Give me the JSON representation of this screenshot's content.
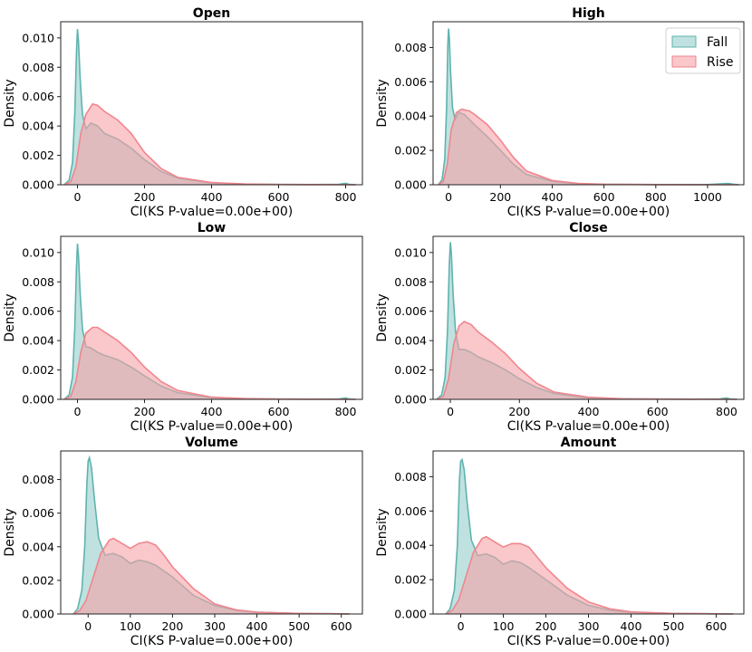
{
  "chart_data": [
    {
      "type": "area",
      "title": "Open",
      "xlabel": "CI(KS P-value=0.00e+00)",
      "ylabel": "Density",
      "xlim": [
        -50,
        850
      ],
      "ylim": [
        0,
        0.0111
      ],
      "xticks": [
        0,
        200,
        400,
        600,
        800
      ],
      "yticks": [
        0.0,
        0.002,
        0.004,
        0.006,
        0.008,
        0.01
      ],
      "ytick_labels": [
        "0.000",
        "0.002",
        "0.004",
        "0.006",
        "0.008",
        "0.010"
      ],
      "series": [
        {
          "name": "Fall",
          "x": [
            -40,
            -25,
            -15,
            -8,
            -3,
            0,
            3,
            8,
            15,
            25,
            40,
            60,
            80,
            120,
            160,
            200,
            250,
            300,
            400,
            500,
            600,
            700,
            780,
            800,
            810,
            830
          ],
          "y": [
            0,
            0.0003,
            0.0015,
            0.0048,
            0.009,
            0.0106,
            0.0098,
            0.0072,
            0.0048,
            0.0038,
            0.0042,
            0.004,
            0.0035,
            0.0031,
            0.0025,
            0.0017,
            0.0009,
            0.00045,
            0.00012,
            4e-05,
            2e-05,
            1e-05,
            3e-05,
            0.0001,
            3e-05,
            0
          ]
        },
        {
          "name": "Rise",
          "x": [
            -40,
            -20,
            -5,
            10,
            25,
            45,
            60,
            80,
            120,
            160,
            200,
            250,
            300,
            400,
            500,
            600,
            700,
            800,
            830
          ],
          "y": [
            0,
            0.0002,
            0.0012,
            0.0035,
            0.0048,
            0.0055,
            0.0054,
            0.005,
            0.0044,
            0.0035,
            0.0022,
            0.0011,
            0.0005,
            0.00015,
            5e-05,
            2e-05,
            1e-05,
            0,
            0
          ]
        }
      ]
    },
    {
      "type": "area",
      "title": "High",
      "xlabel": "CI(KS P-value=0.00e+00)",
      "ylabel": "Density",
      "xlim": [
        -60,
        1140
      ],
      "ylim": [
        0,
        0.0095
      ],
      "xticks": [
        0,
        200,
        400,
        600,
        800,
        1000
      ],
      "yticks": [
        0.0,
        0.002,
        0.004,
        0.006,
        0.008
      ],
      "ytick_labels": [
        "0.000",
        "0.002",
        "0.004",
        "0.006",
        "0.008"
      ],
      "series": [
        {
          "name": "Fall",
          "x": [
            -40,
            -25,
            -15,
            -8,
            -3,
            0,
            3,
            8,
            15,
            25,
            40,
            60,
            100,
            150,
            200,
            250,
            300,
            400,
            500,
            600,
            800,
            1000,
            1080,
            1100,
            1120
          ],
          "y": [
            0,
            0.0003,
            0.0015,
            0.0045,
            0.0082,
            0.0091,
            0.0085,
            0.0065,
            0.0045,
            0.0038,
            0.0042,
            0.0041,
            0.0035,
            0.0028,
            0.002,
            0.0012,
            0.0006,
            0.0002,
            6e-05,
            2e-05,
            1e-05,
            1e-05,
            8e-05,
            3e-05,
            0
          ]
        },
        {
          "name": "Rise",
          "x": [
            -40,
            -20,
            -5,
            10,
            30,
            50,
            80,
            100,
            150,
            200,
            250,
            300,
            400,
            500,
            600,
            800,
            1000,
            1120
          ],
          "y": [
            0,
            0.0002,
            0.0012,
            0.0032,
            0.0042,
            0.0044,
            0.0043,
            0.0041,
            0.0035,
            0.0026,
            0.0016,
            0.0008,
            0.00025,
            8e-05,
            3e-05,
            1e-05,
            0,
            0
          ]
        }
      ]
    },
    {
      "type": "area",
      "title": "Low",
      "xlabel": "CI(KS P-value=0.00e+00)",
      "ylabel": "Density",
      "xlim": [
        -50,
        850
      ],
      "ylim": [
        0,
        0.0111
      ],
      "xticks": [
        0,
        200,
        400,
        600,
        800
      ],
      "yticks": [
        0.0,
        0.002,
        0.004,
        0.006,
        0.008,
        0.01
      ],
      "ytick_labels": [
        "0.000",
        "0.002",
        "0.004",
        "0.006",
        "0.008",
        "0.010"
      ],
      "series": [
        {
          "name": "Fall",
          "x": [
            -40,
            -25,
            -15,
            -8,
            -3,
            0,
            3,
            8,
            15,
            25,
            40,
            60,
            80,
            120,
            160,
            200,
            250,
            300,
            400,
            500,
            600,
            700,
            780,
            800,
            810,
            830
          ],
          "y": [
            0,
            0.0003,
            0.0015,
            0.0048,
            0.009,
            0.0106,
            0.0098,
            0.0072,
            0.0048,
            0.0036,
            0.0035,
            0.0032,
            0.003,
            0.0027,
            0.0022,
            0.0016,
            0.0009,
            0.00045,
            0.00012,
            4e-05,
            2e-05,
            1e-05,
            3e-05,
            0.0001,
            3e-05,
            0
          ]
        },
        {
          "name": "Rise",
          "x": [
            -40,
            -20,
            -5,
            10,
            25,
            45,
            60,
            80,
            120,
            160,
            200,
            250,
            300,
            400,
            500,
            600,
            700,
            800,
            830
          ],
          "y": [
            0,
            0.0002,
            0.0012,
            0.0032,
            0.0045,
            0.0049,
            0.0049,
            0.0046,
            0.004,
            0.0032,
            0.0022,
            0.0012,
            0.0006,
            0.00015,
            5e-05,
            2e-05,
            1e-05,
            0,
            0
          ]
        }
      ]
    },
    {
      "type": "area",
      "title": "Close",
      "xlabel": "CI(KS P-value=0.00e+00)",
      "ylabel": "Density",
      "xlim": [
        -50,
        850
      ],
      "ylim": [
        0,
        0.0111
      ],
      "xticks": [
        0,
        200,
        400,
        600,
        800
      ],
      "yticks": [
        0.0,
        0.002,
        0.004,
        0.006,
        0.008,
        0.01
      ],
      "ytick_labels": [
        "0.000",
        "0.002",
        "0.004",
        "0.006",
        "0.008",
        "0.010"
      ],
      "series": [
        {
          "name": "Fall",
          "x": [
            -40,
            -25,
            -15,
            -8,
            -3,
            0,
            3,
            8,
            15,
            25,
            40,
            60,
            80,
            120,
            160,
            200,
            250,
            300,
            400,
            500,
            600,
            700,
            780,
            800,
            810,
            830
          ],
          "y": [
            0,
            0.0003,
            0.0015,
            0.0048,
            0.0092,
            0.0107,
            0.0099,
            0.0072,
            0.0046,
            0.0034,
            0.0034,
            0.0032,
            0.0029,
            0.0025,
            0.002,
            0.0014,
            0.0008,
            0.0004,
            0.0001,
            4e-05,
            2e-05,
            1e-05,
            3e-05,
            0.0001,
            3e-05,
            0
          ]
        },
        {
          "name": "Rise",
          "x": [
            -40,
            -20,
            -5,
            10,
            25,
            40,
            60,
            80,
            120,
            160,
            200,
            250,
            300,
            400,
            500,
            600,
            700,
            800,
            830
          ],
          "y": [
            0,
            0.0002,
            0.0014,
            0.0038,
            0.005,
            0.0053,
            0.0051,
            0.0046,
            0.0039,
            0.0031,
            0.0021,
            0.0011,
            0.0005,
            0.00014,
            4e-05,
            2e-05,
            1e-05,
            0,
            0
          ]
        }
      ]
    },
    {
      "type": "area",
      "title": "Volume",
      "xlabel": "CI(KS P-value=0.00e+00)",
      "ylabel": "Density",
      "xlim": [
        -65,
        650
      ],
      "ylim": [
        0,
        0.0097
      ],
      "xticks": [
        0,
        100,
        200,
        300,
        400,
        500,
        600
      ],
      "yticks": [
        0.0,
        0.002,
        0.004,
        0.006,
        0.008
      ],
      "ytick_labels": [
        "0.000",
        "0.002",
        "0.004",
        "0.006",
        "0.008"
      ],
      "series": [
        {
          "name": "Fall",
          "x": [
            -35,
            -25,
            -15,
            -8,
            -3,
            0,
            3,
            8,
            15,
            25,
            40,
            60,
            80,
            100,
            120,
            140,
            160,
            200,
            250,
            300,
            350,
            400,
            500,
            600,
            620
          ],
          "y": [
            0,
            0.0003,
            0.0014,
            0.004,
            0.0078,
            0.0091,
            0.0093,
            0.0087,
            0.0068,
            0.0045,
            0.0035,
            0.0036,
            0.0034,
            0.003,
            0.0032,
            0.0031,
            0.0029,
            0.0022,
            0.0011,
            0.0005,
            0.00022,
            0.0001,
            3e-05,
            1e-05,
            0
          ]
        },
        {
          "name": "Rise",
          "x": [
            -35,
            -20,
            -5,
            10,
            30,
            50,
            60,
            80,
            100,
            120,
            140,
            160,
            180,
            200,
            250,
            300,
            350,
            400,
            500,
            600,
            620
          ],
          "y": [
            0,
            0.0002,
            0.0008,
            0.002,
            0.0036,
            0.0044,
            0.0045,
            0.0042,
            0.0039,
            0.0042,
            0.0043,
            0.0041,
            0.0035,
            0.0028,
            0.0015,
            0.0006,
            0.00025,
            0.0001,
            3e-05,
            1e-05,
            0
          ]
        }
      ]
    },
    {
      "type": "area",
      "title": "Amount",
      "xlabel": "CI(KS P-value=0.00e+00)",
      "ylabel": "Density",
      "xlim": [
        -65,
        665
      ],
      "ylim": [
        0,
        0.0095
      ],
      "xticks": [
        0,
        100,
        200,
        300,
        400,
        500,
        600
      ],
      "yticks": [
        0.0,
        0.002,
        0.004,
        0.006,
        0.008
      ],
      "ytick_labels": [
        "0.000",
        "0.002",
        "0.004",
        "0.006",
        "0.008"
      ],
      "series": [
        {
          "name": "Fall",
          "x": [
            -35,
            -25,
            -15,
            -8,
            -3,
            0,
            3,
            8,
            15,
            25,
            40,
            60,
            80,
            100,
            120,
            140,
            160,
            200,
            250,
            300,
            350,
            400,
            500,
            600,
            640
          ],
          "y": [
            0,
            0.0003,
            0.0014,
            0.004,
            0.0078,
            0.0089,
            0.009,
            0.0084,
            0.0065,
            0.0043,
            0.0034,
            0.0035,
            0.0033,
            0.0029,
            0.0031,
            0.003,
            0.0027,
            0.002,
            0.0011,
            0.0005,
            0.00022,
            0.0001,
            3e-05,
            1e-05,
            0
          ]
        },
        {
          "name": "Rise",
          "x": [
            -35,
            -20,
            -5,
            10,
            30,
            50,
            60,
            80,
            100,
            120,
            140,
            160,
            180,
            200,
            250,
            300,
            350,
            400,
            500,
            600,
            640
          ],
          "y": [
            0,
            0.0002,
            0.0008,
            0.002,
            0.0036,
            0.0044,
            0.0045,
            0.0042,
            0.0039,
            0.0041,
            0.0041,
            0.0039,
            0.0033,
            0.0027,
            0.0015,
            0.0007,
            0.0003,
            0.00012,
            3e-05,
            1e-05,
            0
          ]
        }
      ]
    }
  ],
  "legend": {
    "placement": "top-right of High panel",
    "entries": [
      {
        "label": "Fall",
        "fill": "#71bfbb",
        "edge": "#5fb3ae"
      },
      {
        "label": "Rise",
        "fill": "#f7a1a7",
        "edge": "#ef868e"
      }
    ]
  },
  "colors": {
    "fall_fill": "#71bfbb",
    "fall_line": "#5fb3ae",
    "rise_fill": "#f7a1a7",
    "rise_line": "#ef868e"
  }
}
